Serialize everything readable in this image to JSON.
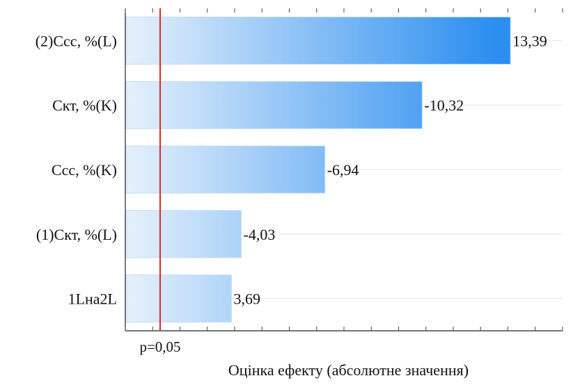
{
  "chart_data": {
    "type": "bar",
    "orientation": "horizontal",
    "title": "",
    "xlabel": "Оцінка ефекту (абсолютне значення)",
    "ylabel": "",
    "categories": [
      "(2)Ccc, %(L)",
      "Cкт, %(K)",
      "Ccc, %(K)",
      "(1)Cкт, %(L)",
      "1Lна2L"
    ],
    "values": [
      13.39,
      10.32,
      6.94,
      4.03,
      3.69
    ],
    "value_labels": [
      "13,39",
      "-10,32",
      "-6,94",
      "-4,03",
      "3,69"
    ],
    "xlim": [
      0,
      15.2
    ],
    "reference_line": {
      "value": 1.21,
      "label": "p=0,05",
      "color": "#d62728"
    },
    "bar_gradient": {
      "start": "#e6f1fc",
      "end": "#2b8ef0"
    },
    "grid": true,
    "legend": "none"
  }
}
